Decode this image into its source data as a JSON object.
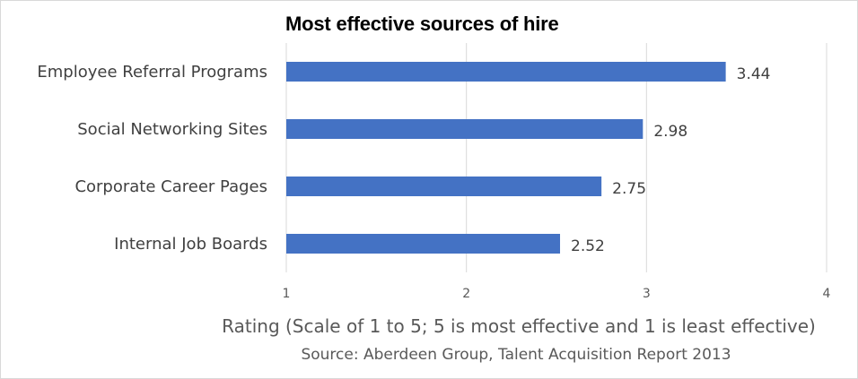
{
  "chart_data": {
    "type": "bar",
    "orientation": "horizontal",
    "title": "Most effective sources of hire",
    "categories": [
      "Employee Referral Programs",
      "Social Networking Sites",
      "Corporate Career Pages",
      "Internal Job Boards"
    ],
    "values": [
      3.44,
      2.98,
      2.75,
      2.52
    ],
    "data_labels": [
      "3.44",
      "2.98",
      "2.75",
      "2.52"
    ],
    "xlabel": "Rating (Scale of 1 to 5; 5 is most effective and 1 is least effective)",
    "ylabel": "",
    "xlim": [
      1,
      4
    ],
    "xticks": [
      "1",
      "2",
      "3",
      "4"
    ],
    "grid": "vertical",
    "bar_color": "#4472c4"
  },
  "source": "Source: Aberdeen Group, Talent Acquisition Report 2013"
}
